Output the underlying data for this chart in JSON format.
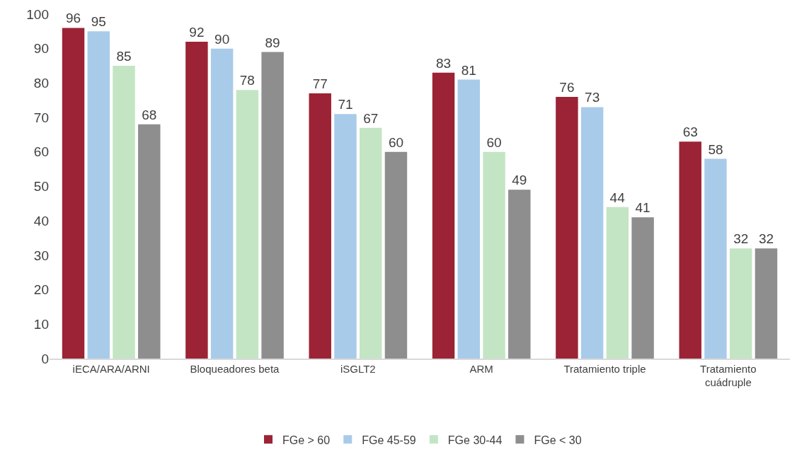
{
  "chart_data": {
    "type": "bar",
    "categories": [
      "iECA/ARA/ARNI",
      "Bloqueadores beta",
      "iSGLT2",
      "ARM",
      "Tratamiento triple",
      "Tratamiento cuádruple"
    ],
    "series": [
      {
        "name": "FGe > 60",
        "color": "#9b2335",
        "values": [
          96,
          92,
          77,
          83,
          76,
          63
        ]
      },
      {
        "name": "FGe 45-59",
        "color": "#a9cbea",
        "values": [
          95,
          90,
          71,
          81,
          73,
          58
        ]
      },
      {
        "name": "FGe 30-44",
        "color": "#c3e5c4",
        "values": [
          85,
          78,
          67,
          60,
          44,
          32
        ]
      },
      {
        "name": "FGe < 30",
        "color": "#8e8e8e",
        "values": [
          68,
          89,
          60,
          49,
          41,
          32
        ]
      }
    ],
    "ylim": [
      0,
      100
    ],
    "yticks": [
      0,
      10,
      20,
      30,
      40,
      50,
      60,
      70,
      80,
      90,
      100
    ],
    "grid": false,
    "legend": "bottom",
    "data_labels": true
  }
}
